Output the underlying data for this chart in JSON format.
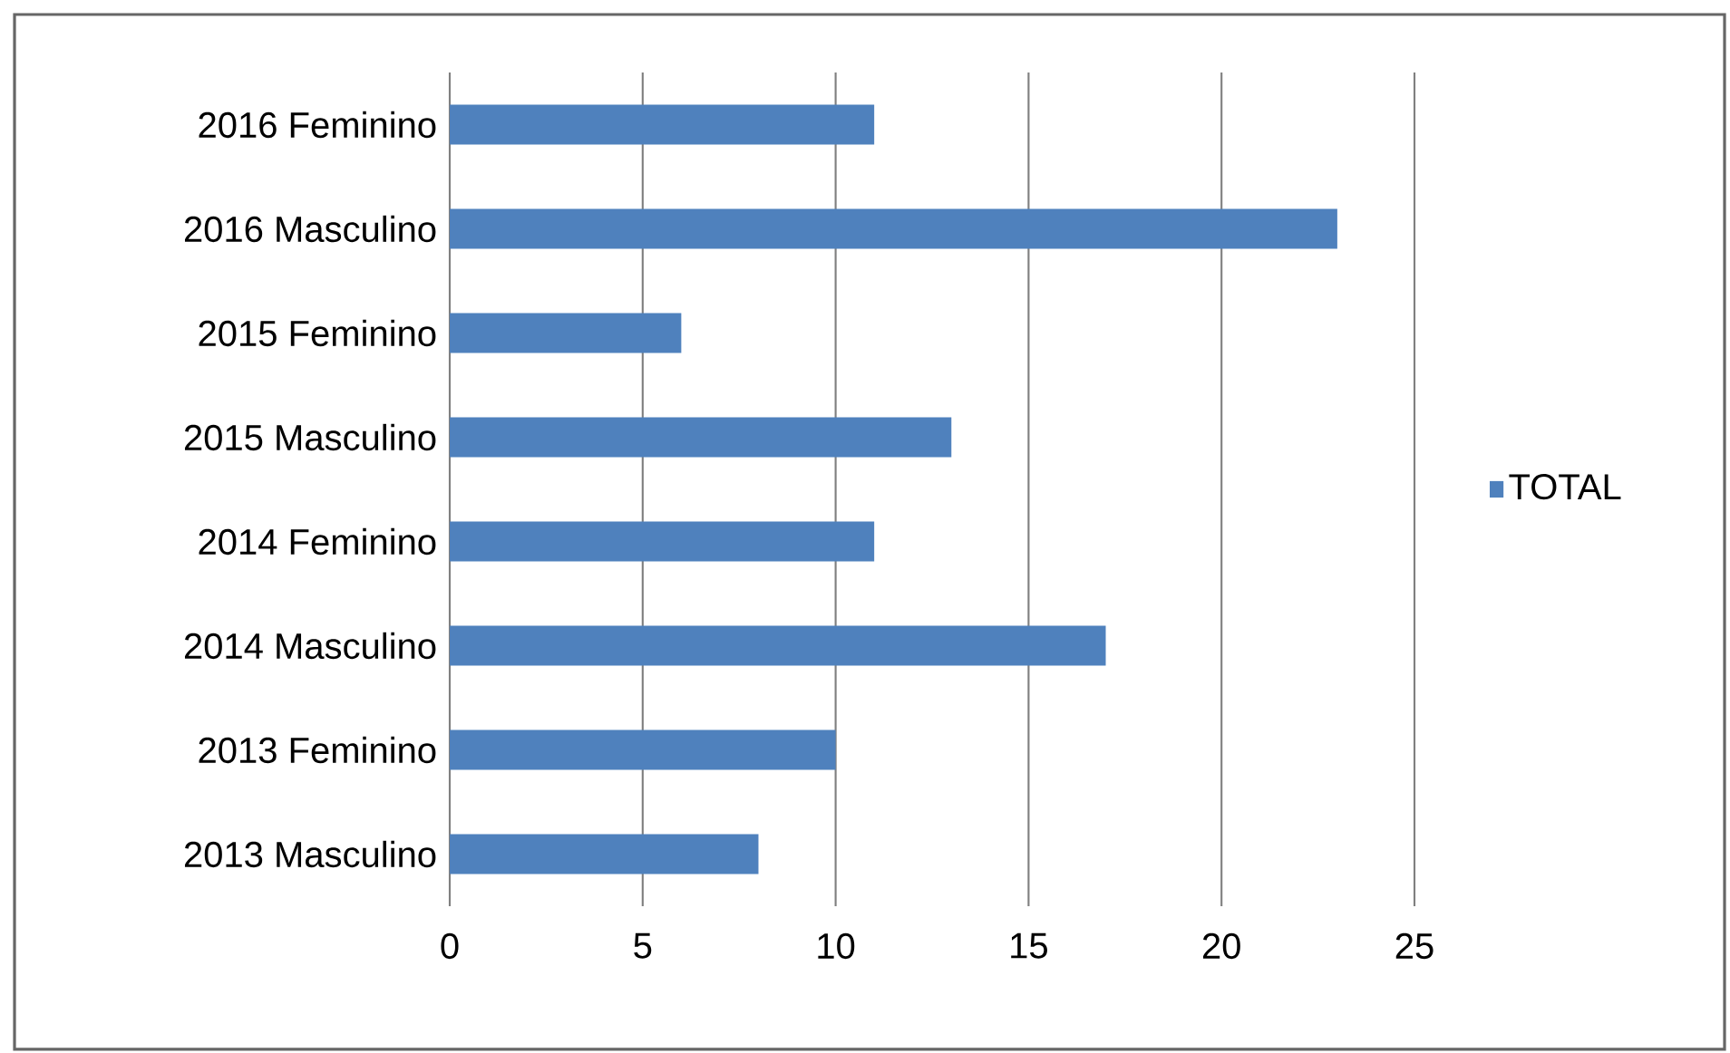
{
  "chart_data": {
    "type": "bar",
    "orientation": "horizontal",
    "categories": [
      "2016 Feminino",
      "2016 Masculino",
      "2015 Feminino",
      "2015 Masculino",
      "2014 Feminino",
      "2014 Masculino",
      "2013 Feminino",
      "2013 Masculino"
    ],
    "series": [
      {
        "name": "TOTAL",
        "color": "#4f81bd",
        "values": [
          11,
          23,
          6,
          13,
          11,
          17,
          10,
          8
        ]
      }
    ],
    "xlim": [
      0,
      25
    ],
    "xticks": [
      0,
      5,
      10,
      15,
      20,
      25
    ],
    "grid": "x",
    "legend": "right"
  }
}
